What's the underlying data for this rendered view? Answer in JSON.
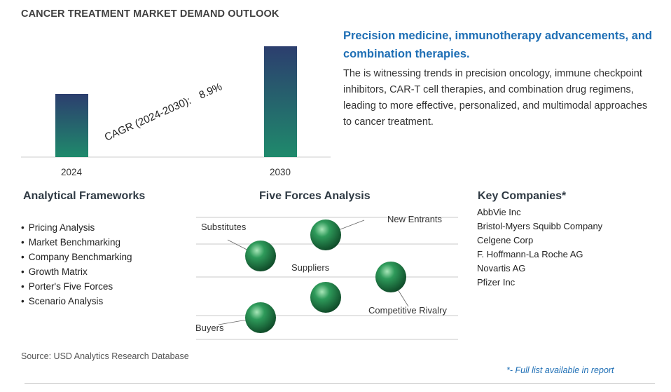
{
  "title": "CANCER TREATMENT MARKET DEMAND OUTLOOK",
  "chart_data": {
    "type": "bar",
    "categories": [
      "2024",
      "2030"
    ],
    "cagr_label": "CAGR (2024-2030):",
    "cagr_value": "8.9%",
    "bar_gradient": [
      "#1f8a6c",
      "#2c3e6e"
    ],
    "baseline_color": "#cccccc"
  },
  "headline": "Precision medicine, immunotherapy advancements, and combination therapies.",
  "description": "The is witnessing trends in precision oncology, immune checkpoint inhibitors, CAR-T cell therapies, and combination drug regimens, leading to more effective, personalized, and multimodal approaches to cancer treatment.",
  "frameworks": {
    "title": "Analytical Frameworks",
    "items": [
      "Pricing Analysis",
      "Market Benchmarking",
      "Company Benchmarking",
      "Growth Matrix",
      "Porter's Five Forces",
      "Scenario Analysis"
    ]
  },
  "five_forces": {
    "title": "Five Forces Analysis",
    "labels": {
      "substitutes": "Substitutes",
      "new_entrants": "New Entrants",
      "suppliers": "Suppliers",
      "competitive_rivalry": "Competitive Rivalry",
      "buyers": "Buyers"
    },
    "sphere_color": "#2e9a5a"
  },
  "companies": {
    "title": "Key Companies*",
    "items": [
      "AbbVie Inc",
      "Bristol-Myers Squibb Company",
      "Celgene Corp",
      "F. Hoffmann-La Roche AG",
      "Novartis AG",
      "Pfizer Inc"
    ]
  },
  "source": "Source: USD Analytics Research Database",
  "footnote": "*- Full list available in report"
}
